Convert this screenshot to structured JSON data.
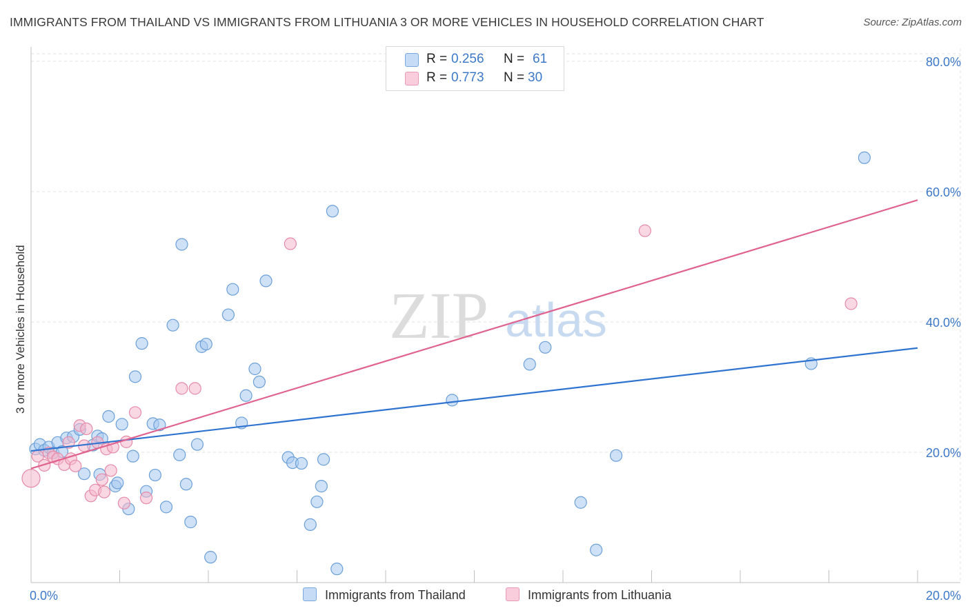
{
  "title": "IMMIGRANTS FROM THAILAND VS IMMIGRANTS FROM LITHUANIA 3 OR MORE VEHICLES IN HOUSEHOLD CORRELATION CHART",
  "source": "Source: ZipAtlas.com",
  "watermark": {
    "zip": "ZIP",
    "atlas": "atlas"
  },
  "colors": {
    "thailand_fill": "#a8c8f0",
    "thailand_stroke": "#6a9fd8",
    "thailand_line": "#2f73d0",
    "lithuania_fill": "#f6b8cc",
    "lithuania_stroke": "#e58aa8",
    "lithuania_line": "#e0628f",
    "axis_label_blue": "#3c78c8"
  },
  "legend_top": [
    {
      "r_label": "R =",
      "r_value": "0.256",
      "n_label": "N =",
      "n_value": "61",
      "series": "thailand"
    },
    {
      "r_label": "R =",
      "r_value": "0.773",
      "n_label": "N =",
      "n_value": "30",
      "series": "lithuania"
    }
  ],
  "chart_data": {
    "type": "scatter",
    "title": "IMMIGRANTS FROM THAILAND VS IMMIGRANTS FROM LITHUANIA 3 OR MORE VEHICLES IN HOUSEHOLD CORRELATION CHART",
    "xlabel": "",
    "ylabel": "3 or more Vehicles in Household",
    "xlim": [
      0,
      20
    ],
    "ylim": [
      0,
      82
    ],
    "x_tick_labels": [
      "0.0%",
      "20.0%"
    ],
    "y_ticks": [
      20,
      40,
      60,
      80
    ],
    "y_tick_labels": [
      "20.0%",
      "40.0%",
      "60.0%",
      "80.0%"
    ],
    "grid": true,
    "legend": [
      {
        "name": "Immigrants from Thailand",
        "series": "thailand"
      },
      {
        "name": "Immigrants from Lithuania",
        "series": "lithuania"
      }
    ],
    "series": [
      {
        "name": "Immigrants from Thailand",
        "key": "thailand",
        "trend": {
          "x": [
            0.0,
            20.0
          ],
          "y": [
            20.2,
            36.0
          ]
        },
        "points": [
          [
            0.1,
            20.5
          ],
          [
            0.2,
            21.2
          ],
          [
            0.3,
            20.3
          ],
          [
            0.4,
            20.8
          ],
          [
            0.5,
            19.9
          ],
          [
            0.6,
            21.5
          ],
          [
            0.7,
            20.1
          ],
          [
            0.8,
            22.2
          ],
          [
            0.95,
            22.4
          ],
          [
            1.1,
            23.5
          ],
          [
            1.2,
            16.7
          ],
          [
            1.4,
            21.1
          ],
          [
            1.5,
            22.5
          ],
          [
            1.55,
            16.6
          ],
          [
            1.6,
            22.1
          ],
          [
            1.75,
            25.5
          ],
          [
            1.9,
            14.8
          ],
          [
            1.95,
            15.3
          ],
          [
            2.05,
            24.3
          ],
          [
            2.2,
            11.3
          ],
          [
            2.3,
            19.4
          ],
          [
            2.35,
            31.6
          ],
          [
            2.5,
            36.7
          ],
          [
            2.6,
            14.0
          ],
          [
            2.75,
            24.4
          ],
          [
            2.8,
            16.5
          ],
          [
            2.9,
            24.2
          ],
          [
            3.05,
            11.6
          ],
          [
            3.2,
            39.5
          ],
          [
            3.35,
            19.6
          ],
          [
            3.4,
            51.9
          ],
          [
            3.5,
            15.1
          ],
          [
            3.6,
            9.3
          ],
          [
            3.75,
            21.2
          ],
          [
            3.85,
            36.2
          ],
          [
            3.95,
            36.6
          ],
          [
            4.05,
            3.9
          ],
          [
            4.45,
            41.1
          ],
          [
            4.55,
            45.0
          ],
          [
            4.75,
            24.5
          ],
          [
            4.85,
            28.7
          ],
          [
            5.05,
            32.8
          ],
          [
            5.15,
            30.8
          ],
          [
            5.3,
            46.3
          ],
          [
            5.8,
            19.2
          ],
          [
            5.9,
            18.4
          ],
          [
            6.1,
            18.3
          ],
          [
            6.3,
            8.9
          ],
          [
            6.45,
            12.4
          ],
          [
            6.55,
            14.8
          ],
          [
            6.6,
            18.9
          ],
          [
            6.8,
            57.0
          ],
          [
            6.9,
            2.1
          ],
          [
            9.5,
            28.0
          ],
          [
            11.25,
            33.5
          ],
          [
            11.6,
            36.1
          ],
          [
            12.4,
            12.3
          ],
          [
            12.75,
            5.0
          ],
          [
            13.2,
            19.5
          ],
          [
            17.6,
            33.6
          ],
          [
            18.8,
            65.2
          ]
        ]
      },
      {
        "name": "Immigrants from Lithuania",
        "key": "lithuania",
        "trend": {
          "x": [
            0.0,
            20.0
          ],
          "y": [
            17.5,
            58.7
          ]
        },
        "points": [
          [
            0.0,
            16.0
          ],
          [
            0.15,
            19.4
          ],
          [
            0.3,
            18.0
          ],
          [
            0.4,
            19.9
          ],
          [
            0.5,
            19.3
          ],
          [
            0.6,
            19.0
          ],
          [
            0.75,
            18.1
          ],
          [
            0.85,
            21.5
          ],
          [
            0.9,
            19.0
          ],
          [
            1.0,
            17.9
          ],
          [
            1.1,
            24.1
          ],
          [
            1.2,
            21.0
          ],
          [
            1.25,
            23.6
          ],
          [
            1.35,
            13.3
          ],
          [
            1.45,
            14.2
          ],
          [
            1.5,
            21.5
          ],
          [
            1.6,
            15.8
          ],
          [
            1.65,
            13.9
          ],
          [
            1.7,
            20.5
          ],
          [
            1.8,
            17.2
          ],
          [
            1.85,
            20.8
          ],
          [
            2.1,
            12.2
          ],
          [
            2.15,
            21.6
          ],
          [
            2.35,
            26.1
          ],
          [
            2.6,
            13.0
          ],
          [
            3.4,
            29.8
          ],
          [
            3.7,
            29.8
          ],
          [
            5.85,
            52.0
          ],
          [
            13.85,
            54.0
          ],
          [
            18.5,
            42.8
          ]
        ]
      }
    ]
  }
}
